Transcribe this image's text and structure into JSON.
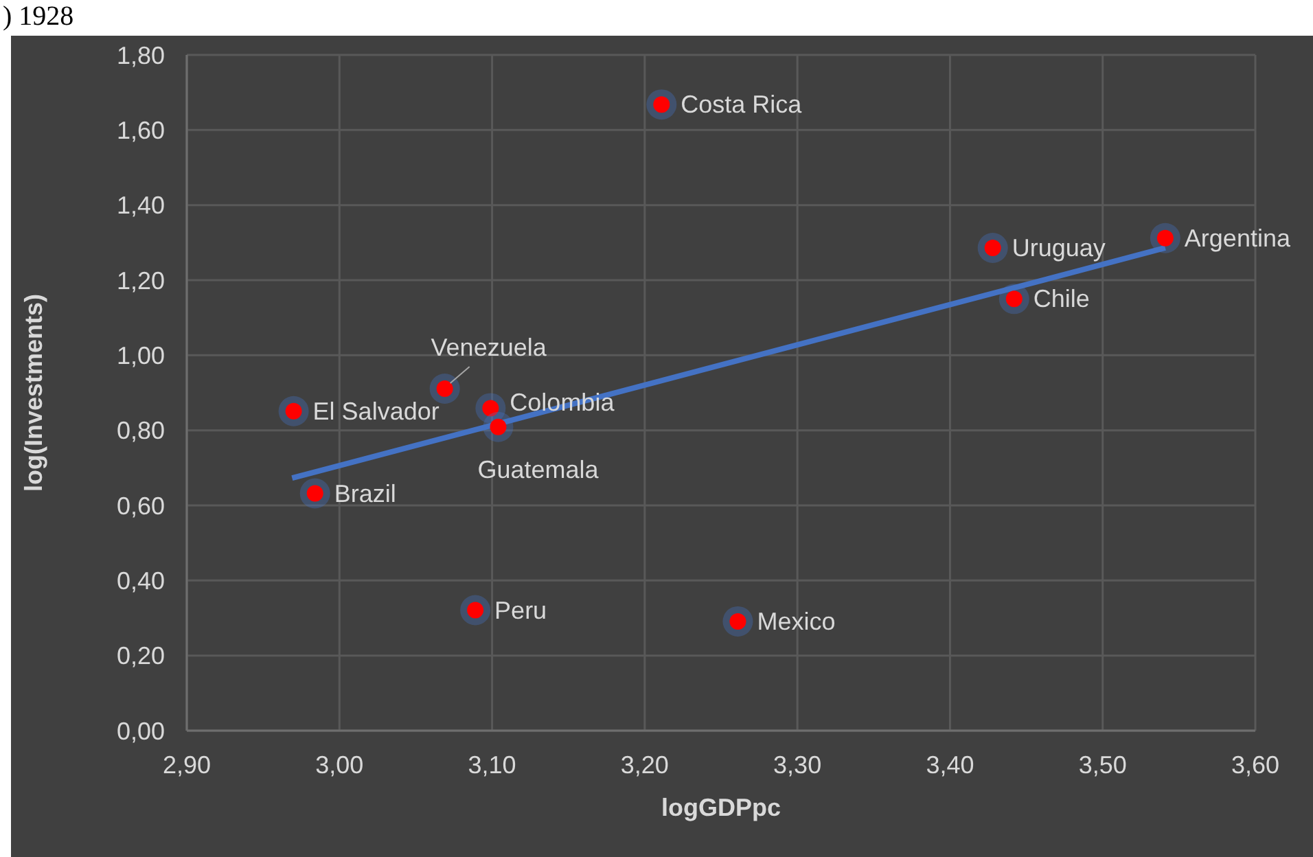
{
  "chart_data": {
    "type": "scatter",
    "title": ") 1928",
    "xlabel": "logGDPpc",
    "ylabel": "log(Investments)",
    "xlim": [
      2.9,
      3.6
    ],
    "ylim": [
      0,
      1.8
    ],
    "xticks": [
      {
        "value": 2.9,
        "label": "2,90"
      },
      {
        "value": 3.0,
        "label": "3,00"
      },
      {
        "value": 3.1,
        "label": "3,10"
      },
      {
        "value": 3.2,
        "label": "3,20"
      },
      {
        "value": 3.3,
        "label": "3,30"
      },
      {
        "value": 3.4,
        "label": "3,40"
      },
      {
        "value": 3.5,
        "label": "3,50"
      },
      {
        "value": 3.6,
        "label": "3,60"
      }
    ],
    "yticks": [
      {
        "value": 0,
        "label": "0,00"
      },
      {
        "value": 0.2,
        "label": "0,20"
      },
      {
        "value": 0.4,
        "label": "0,40"
      },
      {
        "value": 0.6,
        "label": "0,60"
      },
      {
        "value": 0.8,
        "label": "0,80"
      },
      {
        "value": 1.0,
        "label": "1,00"
      },
      {
        "value": 1.2,
        "label": "1,20"
      },
      {
        "value": 1.4,
        "label": "1,40"
      },
      {
        "value": 1.6,
        "label": "1,60"
      },
      {
        "value": 1.8,
        "label": "1,80"
      }
    ],
    "grid": true,
    "series": [
      {
        "marker": "circle",
        "color": "#ff0000",
        "x": [
          3.211,
          3.428,
          3.541,
          3.442,
          3.069,
          2.97,
          3.099,
          3.104,
          2.984,
          3.089,
          3.261
        ],
        "values": [
          1.668,
          1.286,
          1.312,
          1.15,
          0.911,
          0.851,
          0.859,
          0.809,
          0.632,
          0.321,
          0.291
        ]
      },
      {
        "type": "line",
        "color": "#4472c4",
        "x": [
          2.969,
          3.541
        ],
        "values": [
          0.673,
          1.286
        ]
      }
    ],
    "annotations": [
      {
        "text": "Costa Rica",
        "x": 3.211,
        "y": 1.668
      },
      {
        "text": "Uruguay",
        "x": 3.428,
        "y": 1.286
      },
      {
        "text": "Argentina",
        "x": 3.541,
        "y": 1.312
      },
      {
        "text": "Chile",
        "x": 3.442,
        "y": 1.15
      },
      {
        "text": "Venezuela",
        "x": 3.069,
        "y": 0.911
      },
      {
        "text": "El Salvador",
        "x": 2.97,
        "y": 0.851
      },
      {
        "text": "Colombia",
        "x": 3.099,
        "y": 0.859
      },
      {
        "text": "Guatemala",
        "x": 3.104,
        "y": 0.809
      },
      {
        "text": "Brazil",
        "x": 2.984,
        "y": 0.632
      },
      {
        "text": "Peru",
        "x": 3.089,
        "y": 0.321
      },
      {
        "text": "Mexico",
        "x": 3.261,
        "y": 0.291
      }
    ]
  }
}
